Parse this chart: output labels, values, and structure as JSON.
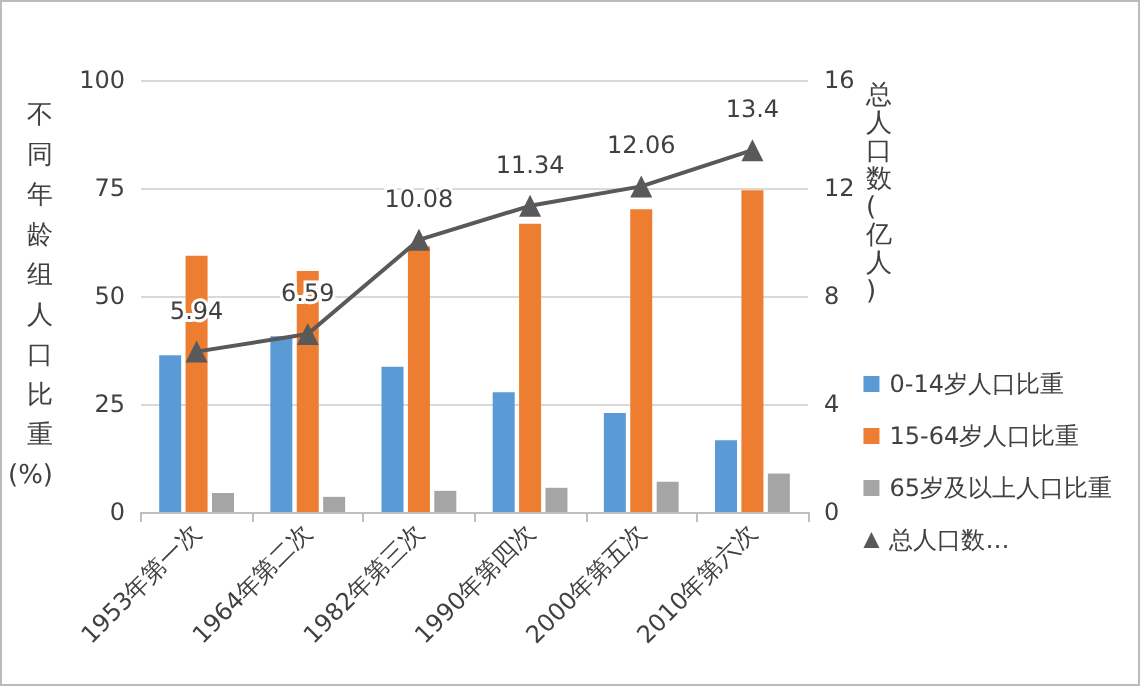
{
  "chart_data": {
    "type": "bar",
    "ylabel": "不同年龄组人口比重(%)",
    "y2label": "总人口数(亿人)",
    "categories": [
      "1953年第一次",
      "1964年第二次",
      "1982年第三次",
      "1990年第四次",
      "2000年第五次",
      "2010年第六次"
    ],
    "series": [
      {
        "name": "0-14岁人口比重",
        "color": "#5b9bd5",
        "values": [
          36.3,
          40.7,
          33.6,
          27.7,
          22.9,
          16.6
        ]
      },
      {
        "name": "15-64岁人口比重",
        "color": "#ed7d31",
        "values": [
          59.3,
          55.8,
          61.5,
          66.7,
          70.1,
          74.5
        ]
      },
      {
        "name": "65岁及以上人口比重",
        "color": "#a5a5a5",
        "values": [
          4.4,
          3.5,
          4.9,
          5.6,
          7.0,
          8.9
        ]
      },
      {
        "name": "总人口数…",
        "type": "line",
        "axis": "y2",
        "color": "#595959",
        "marker": "triangle",
        "values": [
          5.94,
          6.59,
          10.08,
          11.34,
          12.06,
          13.4
        ],
        "value_labels": [
          "5.94",
          "6.59",
          "10.08",
          "11.34",
          "12.06",
          "13.4"
        ]
      }
    ],
    "ylim": [
      0,
      100
    ],
    "yticks": [
      0,
      25,
      50,
      75,
      100
    ],
    "y2lim": [
      0,
      16
    ],
    "y2ticks": [
      0,
      4,
      8,
      12,
      16
    ],
    "grid": "y",
    "legend": "right"
  }
}
